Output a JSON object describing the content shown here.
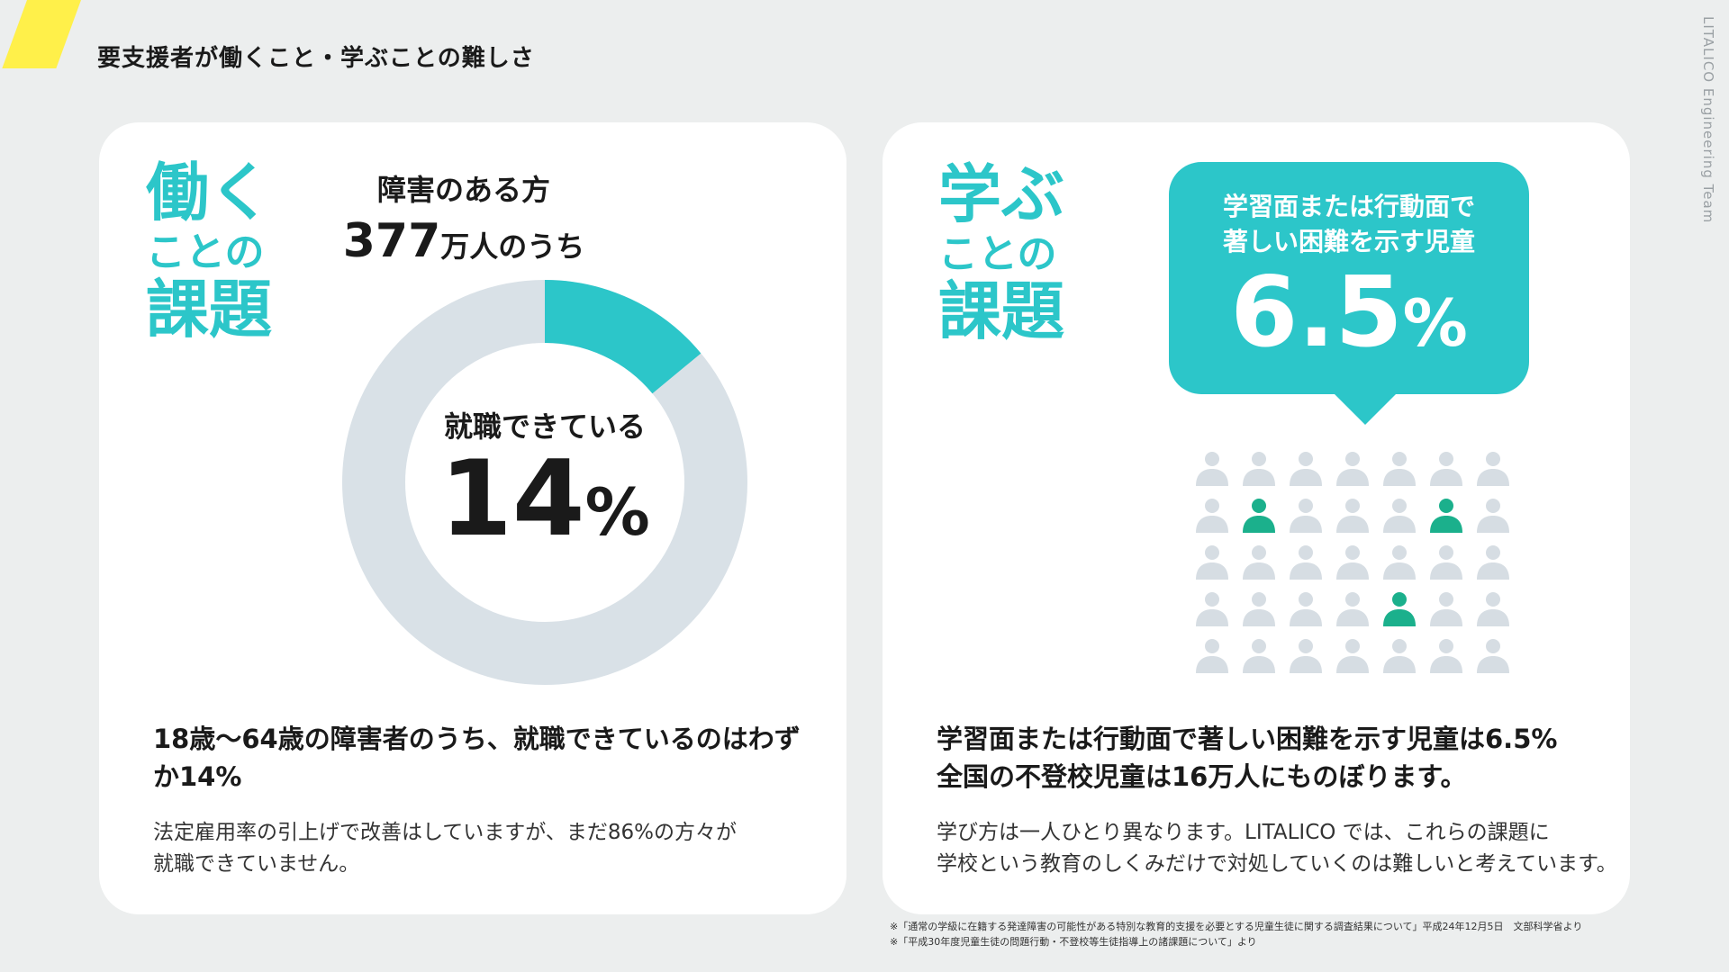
{
  "header": {
    "title": "要支援者が働くこと・学ぶことの難しさ",
    "brand_vertical": "LITALICO Engineering Team"
  },
  "left_card": {
    "heading": {
      "line1": "働く",
      "line2": "ことの",
      "line3": "課題"
    },
    "caption": {
      "line1": "障害のある方",
      "number": "377",
      "unit": "万人のうち"
    },
    "donut": {
      "label": "就職できている",
      "value": "14",
      "percent_sign": "%",
      "fraction": 0.14
    },
    "headline": "18歳～64歳の障害者のうち、就職できているのはわずか14%",
    "body_line1": "法定雇用率の引上げで改善はしていますが、まだ86%の方々が",
    "body_line2": "就職できていません。"
  },
  "right_card": {
    "heading": {
      "line1": "学ぶ",
      "line2": "ことの",
      "line3": "課題"
    },
    "bubble": {
      "line1": "学習面または行動面で",
      "line2": "著しい困難を示す児童",
      "value": "6.5",
      "percent_sign": "%"
    },
    "people": {
      "rows": 5,
      "cols": 7,
      "highlighted": [
        8,
        12,
        25
      ]
    },
    "headline_line1": "学習面または行動面で著しい困難を示す児童は6.5%",
    "headline_line2": "全国の不登校児童は16万人にものぼります。",
    "body_line1": "学び方は一人ひとり異なります。LITALICO では、これらの課題に",
    "body_line2": "学校という教育のしくみだけで対処していくのは難しいと考えています。"
  },
  "footnotes": {
    "note1": "※「通常の学級に在籍する発達障害の可能性がある特別な教育的支援を必要とする児童生徒に関する調査結果について」平成24年12月5日　文部科学省より",
    "note2": "※「平成30年度児童生徒の問題行動・不登校等生徒指導上の諸課題について」より"
  },
  "colors": {
    "accent_teal": "#2cc6c9",
    "person_highlight": "#1bb08c",
    "person_normal": "#d6dde3",
    "donut_track": "#d9e1e7",
    "stripe_yellow": "#fff04a",
    "background": "#eceeee"
  }
}
